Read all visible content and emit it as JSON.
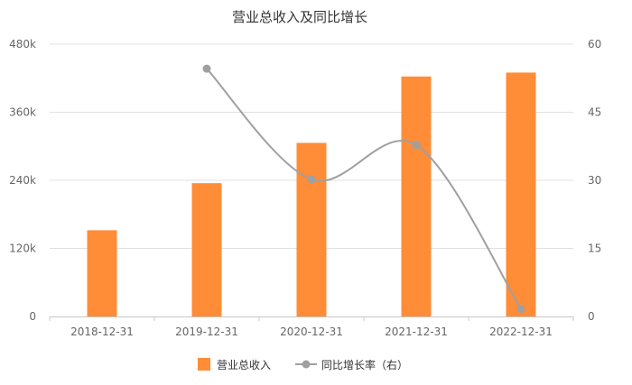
{
  "chart_data": {
    "type": "bar",
    "title": "营业总收入及同比增长",
    "categories": [
      "2018-12-31",
      "2019-12-31",
      "2020-12-31",
      "2021-12-31",
      "2022-12-31"
    ],
    "series": [
      {
        "name": "营业总收入",
        "type": "bar",
        "axis": "left",
        "color": "#ff8c37",
        "values": [
          152000,
          235000,
          306000,
          423000,
          430000
        ]
      },
      {
        "name": "同比增长率（右）",
        "type": "line",
        "axis": "right",
        "color": "#a0a0a0",
        "values": [
          null,
          54.6,
          30.2,
          37.8,
          1.7
        ]
      }
    ],
    "y_left": {
      "min": 0,
      "max": 480000,
      "ticks": [
        0,
        120000,
        240000,
        360000,
        480000
      ],
      "tick_labels": [
        "0",
        "120k",
        "240k",
        "360k",
        "480k"
      ]
    },
    "y_right": {
      "min": 0,
      "max": 60,
      "ticks": [
        0,
        15,
        30,
        45,
        60
      ],
      "tick_labels": [
        "0",
        "15",
        "30",
        "45",
        "60"
      ]
    },
    "grid": true,
    "legend": "bottom-center"
  }
}
